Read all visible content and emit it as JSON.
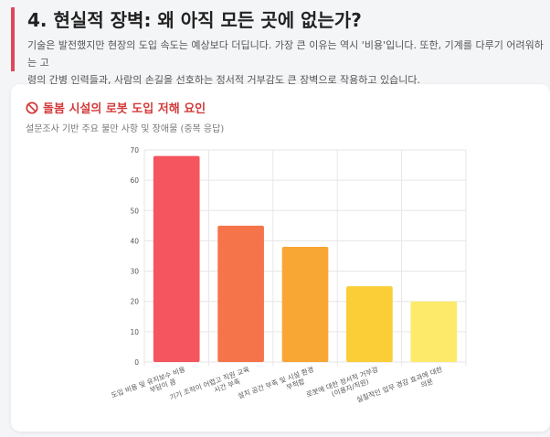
{
  "header": {
    "title": "4. 현실적 장벽: 왜 아직 모든 곳에 없는가?",
    "description_line1": "기술은 발전했지만 현장의 도입 속도는 예상보다 더딥니다. 가장 큰 이유는 역시 '비용'입니다. 또한, 기계를 다루기 어려워하는 고",
    "description_line2": "령의 간병 인력들과, 사람의 손길을 선호하는 정서적 거부감도 큰 장벽으로 작용하고 있습니다."
  },
  "card": {
    "title": "돌봄 시설의 로봇 도입 저해 요인",
    "title_icon": "no-entry-icon",
    "subtitle": "설문조사 기반 주요 불만 사항 및 장애물 (중복 응답)"
  },
  "colors": {
    "accent": "#e0485a",
    "title_red": "#d33a3a"
  },
  "chart_data": {
    "type": "bar",
    "categories": [
      [
        "도입 비용 및 유지보수 비용",
        "부담이 큼"
      ],
      [
        "기기 조작이 어렵고 직원 교육",
        "시간 부족"
      ],
      [
        "설치 공간 부족 및 시설 환경",
        "부적합"
      ],
      [
        "로봇에 대한 정서적 거부감",
        "(이용자/직원)"
      ],
      [
        "실질적인 업무 경감 효과에 대한",
        "의문"
      ]
    ],
    "values": [
      68,
      45,
      38,
      25,
      20
    ],
    "colors": [
      "#f5555e",
      "#f6744a",
      "#f8a634",
      "#fbcd36",
      "#fde96a"
    ],
    "ylim": [
      0,
      70
    ],
    "yticks": [
      0,
      10,
      20,
      30,
      40,
      50,
      60,
      70
    ],
    "grid": true,
    "legend": "none"
  }
}
